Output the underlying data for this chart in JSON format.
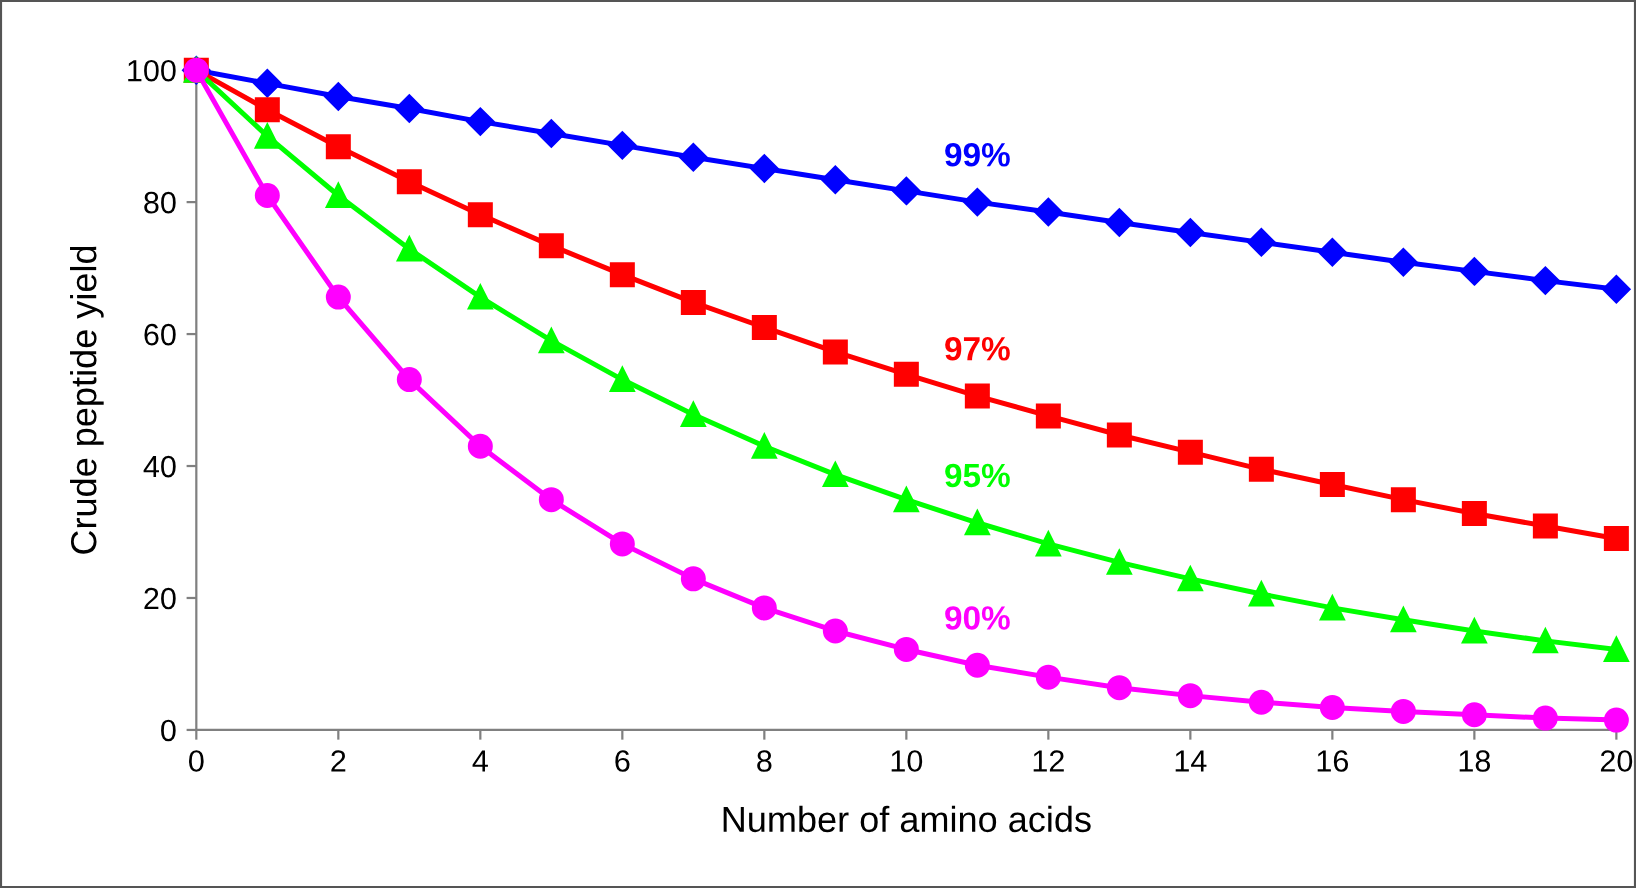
{
  "chart_data": {
    "type": "line",
    "xlabel": "Number of amino acids",
    "ylabel": "Crude peptide yield",
    "x": [
      0,
      1,
      2,
      3,
      4,
      5,
      6,
      7,
      8,
      9,
      10,
      11,
      12,
      13,
      14,
      15,
      16,
      17,
      18,
      19,
      20
    ],
    "xlim": [
      0,
      20
    ],
    "xticks": [
      0,
      2,
      4,
      6,
      8,
      10,
      12,
      14,
      16,
      18,
      20
    ],
    "ylim": [
      0,
      100
    ],
    "yticks": [
      0,
      20,
      40,
      60,
      80,
      100
    ],
    "grid": false,
    "legend": false,
    "series": [
      {
        "name": "99%",
        "color": "#0000ff",
        "marker": "diamond",
        "values": [
          100,
          98,
          96,
          94.2,
          92.2,
          90.4,
          88.6,
          86.8,
          85.1,
          83.4,
          81.7,
          80,
          78.5,
          76.9,
          75.4,
          73.9,
          72.4,
          70.9,
          69.5,
          68.1,
          66.8
        ]
      },
      {
        "name": "97%",
        "color": "#ff0000",
        "marker": "square",
        "values": [
          100,
          94,
          88.4,
          83.1,
          78.1,
          73.4,
          69,
          64.8,
          61,
          57.3,
          53.9,
          50.6,
          47.6,
          44.7,
          42.1,
          39.5,
          37.2,
          34.9,
          32.8,
          30.9,
          29
        ]
      },
      {
        "name": "95%",
        "color": "#00ff00",
        "marker": "triangle",
        "values": [
          100,
          90,
          81,
          72.9,
          65.6,
          59,
          53.1,
          47.8,
          43,
          38.7,
          34.9,
          31.4,
          28.2,
          25.4,
          22.9,
          20.6,
          18.5,
          16.7,
          15,
          13.5,
          12.2
        ]
      },
      {
        "name": "90%",
        "color": "#ff00ff",
        "marker": "circle",
        "values": [
          100,
          81,
          65.6,
          53.1,
          43,
          34.9,
          28.2,
          22.9,
          18.5,
          15,
          12.2,
          9.8,
          8,
          6.4,
          5.2,
          4.2,
          3.4,
          2.8,
          2.3,
          1.8,
          1.5
        ]
      }
    ]
  }
}
